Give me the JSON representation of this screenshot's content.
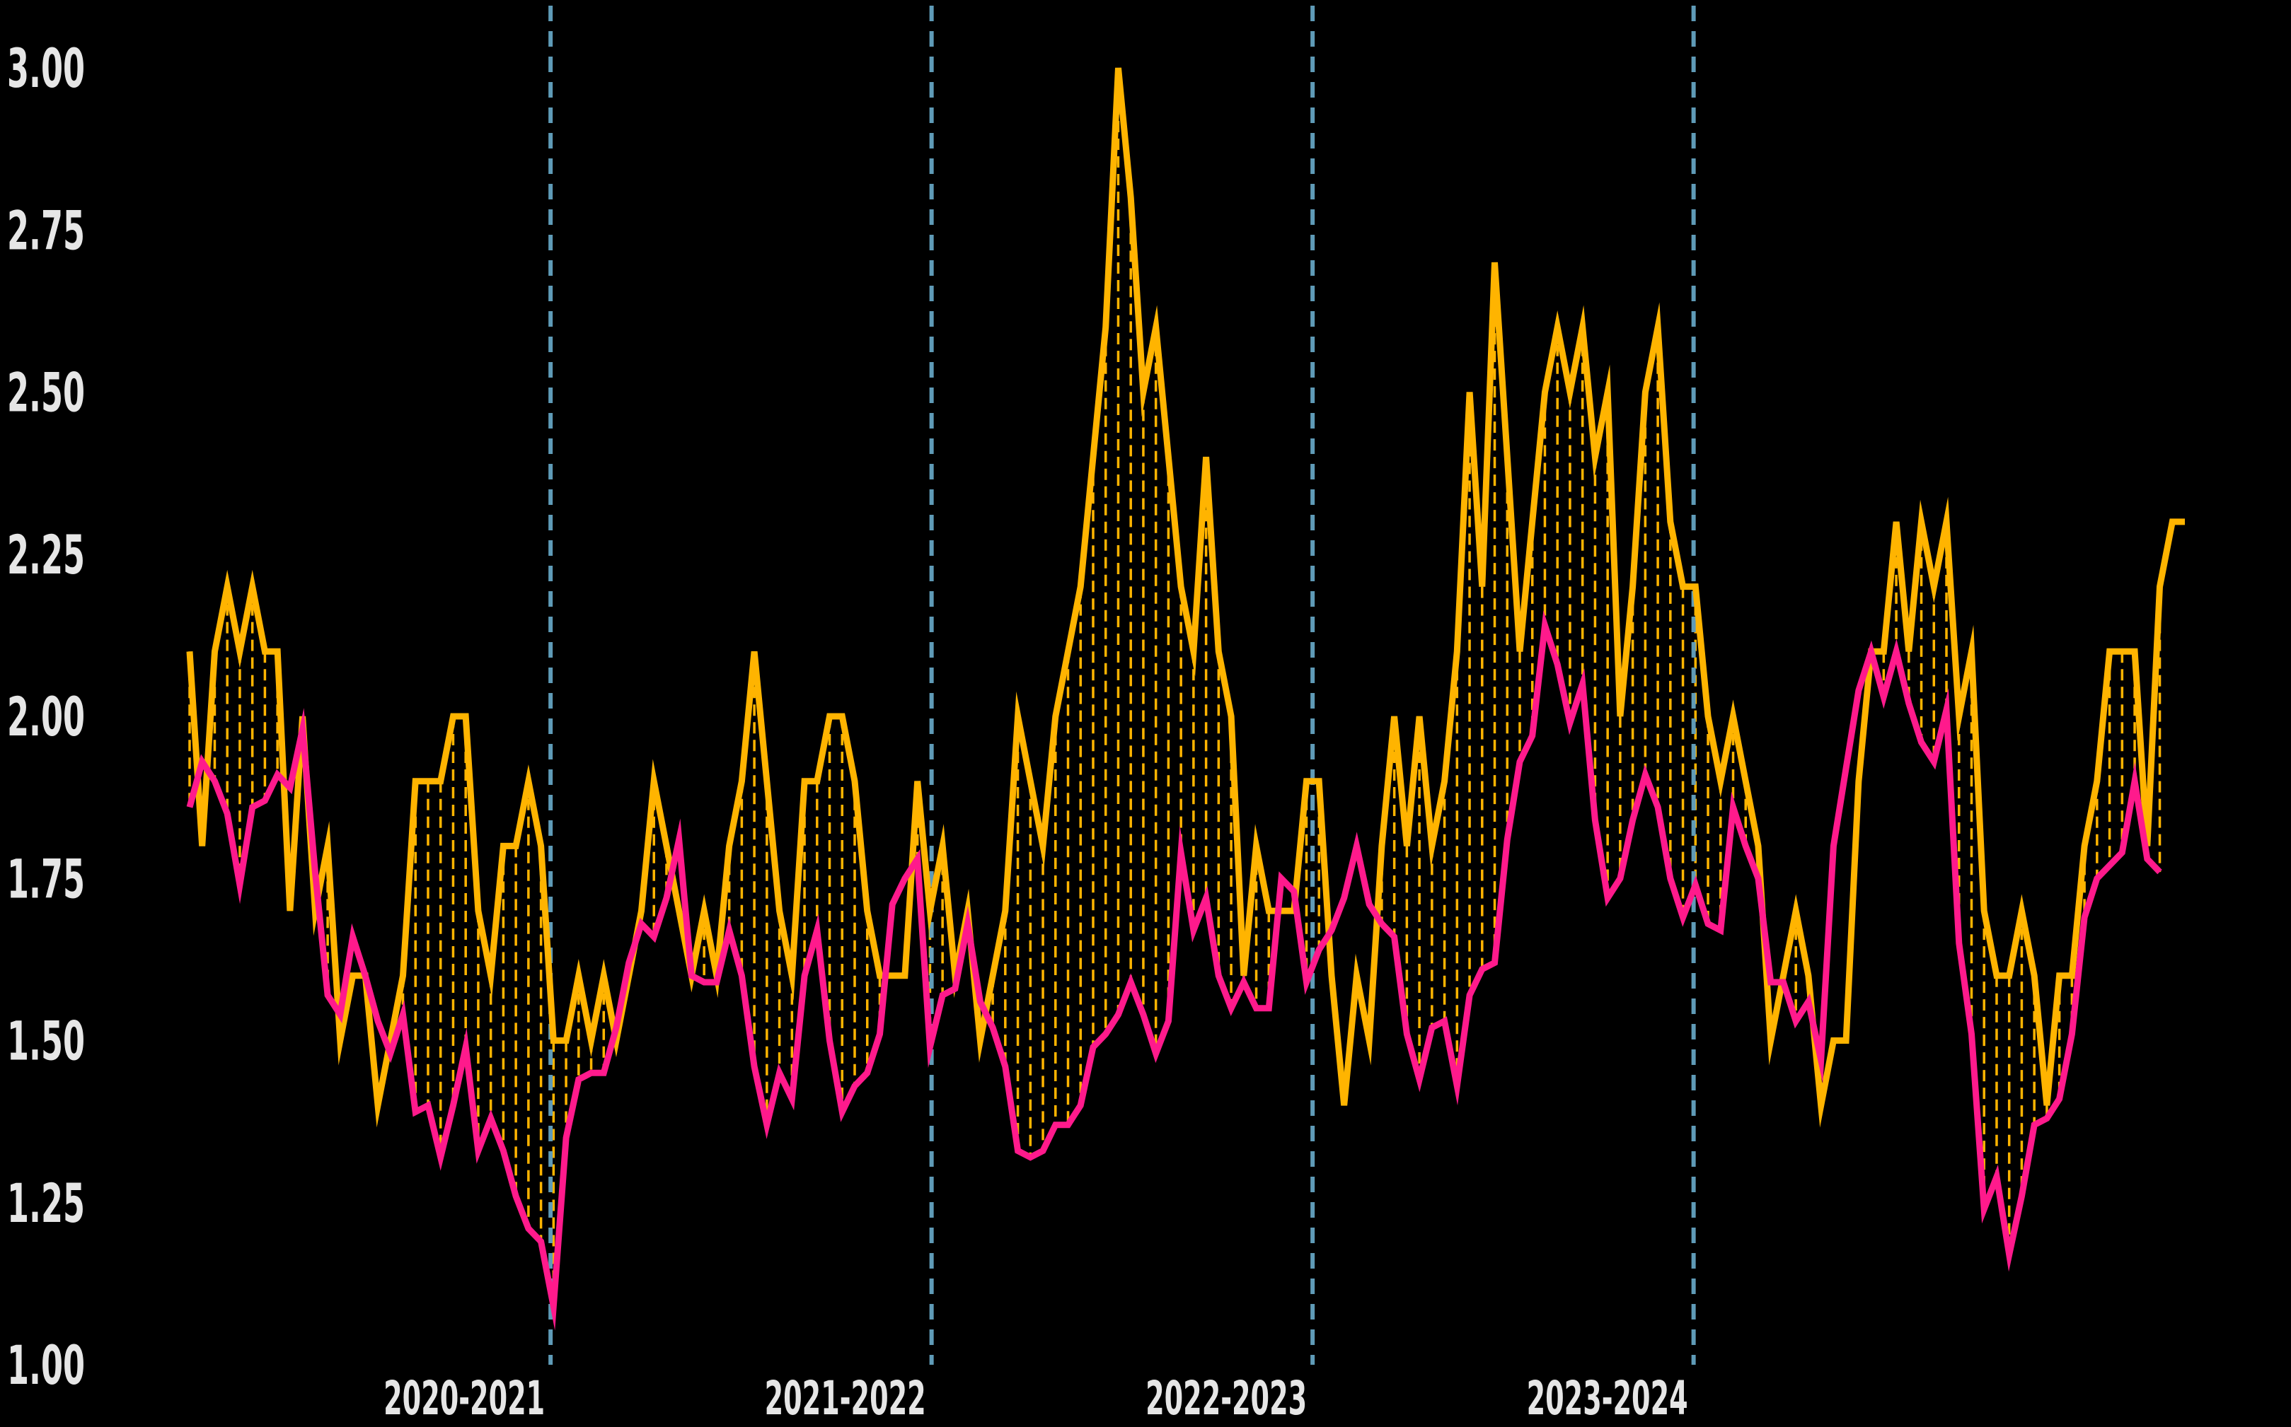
{
  "chart_data": {
    "type": "line",
    "title": "",
    "xlabel": "",
    "ylabel": "",
    "ylim": [
      1.0,
      3.0
    ],
    "y_ticks": [
      "1.00",
      "1.25",
      "1.50",
      "1.75",
      "2.00",
      "2.25",
      "2.50",
      "2.75",
      "3.00"
    ],
    "x_range": [
      0,
      199
    ],
    "season_separators": [
      36,
      74,
      112,
      150
    ],
    "season_labels": [
      "2020-2021",
      "2021-2022",
      "2022-2023",
      "2023-2024"
    ],
    "grid": false,
    "legend": "none",
    "fill_between": "dashed vertical lines between series",
    "colors": {
      "background": "#000000",
      "series_a": "#FFB400",
      "series_b": "#FF1A8C",
      "separator": "#5F9BB7",
      "text": "#E6E6E6"
    },
    "series": [
      {
        "values": [
          2.1,
          1.8,
          2.1,
          2.2,
          2.1,
          2.2,
          2.1,
          2.1,
          1.7,
          2.0,
          1.7,
          1.8,
          1.5,
          1.6,
          1.6,
          1.4,
          1.5,
          1.6,
          1.9,
          1.9,
          1.9,
          2.0,
          2.0,
          1.7,
          1.6,
          1.8,
          1.8,
          1.9,
          1.8,
          1.5,
          1.5,
          1.6,
          1.5,
          1.6,
          1.5,
          1.6,
          1.7,
          1.9,
          1.8,
          1.7,
          1.6,
          1.7,
          1.6,
          1.8,
          1.9,
          2.1,
          1.9,
          1.7,
          1.6,
          1.9,
          1.9,
          2.0,
          2.0,
          1.9,
          1.7,
          1.6,
          1.6,
          1.6,
          1.9,
          1.7,
          1.8,
          1.6,
          1.7,
          1.5,
          1.6,
          1.7,
          2.0,
          1.9,
          1.8,
          2.0,
          2.1,
          2.2,
          2.4,
          2.6,
          3.0,
          2.8,
          2.5,
          2.6,
          2.4,
          2.2,
          2.1,
          2.4,
          2.1,
          2.0,
          1.6,
          1.8,
          1.7,
          1.7,
          1.7,
          1.9,
          1.9,
          1.6,
          1.4,
          1.6,
          1.5,
          1.8,
          2.0,
          1.8,
          2.0,
          1.8,
          1.9,
          2.1,
          2.5,
          2.2,
          2.7,
          2.4,
          2.1,
          2.3,
          2.5,
          2.6,
          2.5,
          2.6,
          2.4,
          2.5,
          2.0,
          2.2,
          2.5,
          2.6,
          2.3,
          2.2,
          2.2,
          2.0,
          1.9,
          2.0,
          1.9,
          1.8,
          1.5,
          1.6,
          1.7,
          1.6,
          1.4,
          1.5,
          1.5,
          1.9,
          2.1,
          2.1,
          2.3,
          2.1,
          2.3,
          2.2,
          2.3,
          2.0,
          2.1,
          1.7,
          1.6,
          1.6,
          1.7,
          1.6,
          1.4,
          1.6,
          1.6,
          1.8,
          1.9,
          2.1,
          2.1,
          2.1,
          1.8,
          2.2,
          2.3,
          2.3
        ],
        "role": "upper"
      },
      {
        "values": [
          1.86,
          1.93,
          1.9,
          1.85,
          1.74,
          1.86,
          1.87,
          1.91,
          1.89,
          1.98,
          1.76,
          1.57,
          1.54,
          1.66,
          1.6,
          1.53,
          1.48,
          1.54,
          1.39,
          1.4,
          1.32,
          1.4,
          1.49,
          1.33,
          1.38,
          1.33,
          1.26,
          1.21,
          1.19,
          1.09,
          1.35,
          1.44,
          1.45,
          1.45,
          1.52,
          1.62,
          1.68,
          1.66,
          1.72,
          1.81,
          1.6,
          1.59,
          1.59,
          1.67,
          1.6,
          1.46,
          1.37,
          1.45,
          1.41,
          1.6,
          1.67,
          1.5,
          1.39,
          1.43,
          1.45,
          1.51,
          1.71,
          1.75,
          1.78,
          1.49,
          1.57,
          1.58,
          1.68,
          1.56,
          1.52,
          1.46,
          1.33,
          1.32,
          1.33,
          1.37,
          1.37,
          1.4,
          1.49,
          1.51,
          1.54,
          1.59,
          1.54,
          1.48,
          1.53,
          1.79,
          1.67,
          1.72,
          1.6,
          1.55,
          1.59,
          1.55,
          1.55,
          1.75,
          1.73,
          1.59,
          1.64,
          1.67,
          1.72,
          1.8,
          1.71,
          1.68,
          1.66,
          1.51,
          1.44,
          1.52,
          1.53,
          1.43,
          1.57,
          1.61,
          1.62,
          1.81,
          1.93,
          1.97,
          2.14,
          2.08,
          1.99,
          2.05,
          1.84,
          1.72,
          1.75,
          1.84,
          1.91,
          1.86,
          1.75,
          1.69,
          1.74,
          1.68,
          1.67,
          1.86,
          1.8,
          1.75,
          1.59,
          1.59,
          1.53,
          1.56,
          1.47,
          1.8,
          1.92,
          2.04,
          2.1,
          2.03,
          2.1,
          2.02,
          1.96,
          1.93,
          2.01,
          1.65,
          1.51,
          1.24,
          1.29,
          1.17,
          1.26,
          1.37,
          1.38,
          1.41,
          1.51,
          1.69,
          1.75,
          1.77,
          1.79,
          1.9,
          1.78,
          1.76
        ],
        "role": "lower"
      }
    ]
  }
}
